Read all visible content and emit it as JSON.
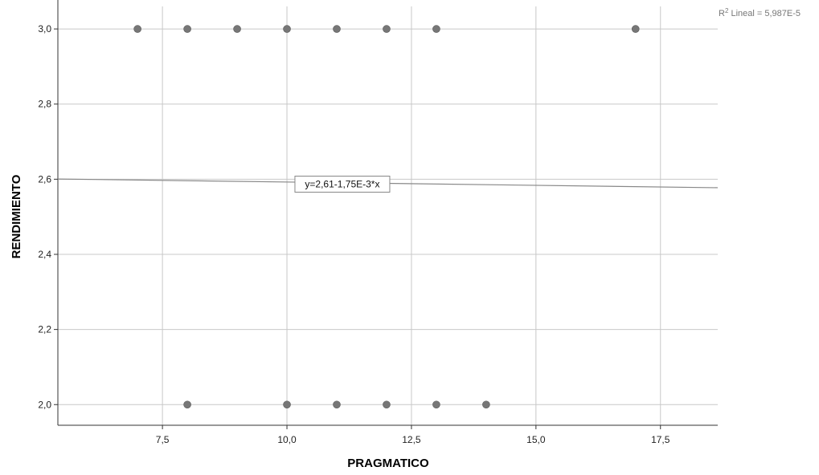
{
  "chart_data": {
    "type": "scatter",
    "xlabel": "PRAGMATICO",
    "ylabel": "RENDIMIENTO",
    "xlim": [
      5.4,
      18.65
    ],
    "ylim": [
      1.945,
      3.06
    ],
    "xticks": [
      7.5,
      10.0,
      12.5,
      15.0,
      17.5
    ],
    "xtick_labels": [
      "7,5",
      "10,0",
      "12,5",
      "15,0",
      "17,5"
    ],
    "yticks": [
      2.0,
      2.2,
      2.4,
      2.6,
      2.8,
      3.0
    ],
    "ytick_labels": [
      "2,0",
      "2,2",
      "2,4",
      "2,6",
      "2,8",
      "3,0"
    ],
    "grid": true,
    "points": [
      {
        "x": 7,
        "y": 3.0
      },
      {
        "x": 8,
        "y": 3.0
      },
      {
        "x": 9,
        "y": 3.0
      },
      {
        "x": 10,
        "y": 3.0
      },
      {
        "x": 11,
        "y": 3.0
      },
      {
        "x": 12,
        "y": 3.0
      },
      {
        "x": 13,
        "y": 3.0
      },
      {
        "x": 17,
        "y": 3.0
      },
      {
        "x": 8,
        "y": 2.0
      },
      {
        "x": 10,
        "y": 2.0
      },
      {
        "x": 11,
        "y": 2.0
      },
      {
        "x": 12,
        "y": 2.0
      },
      {
        "x": 13,
        "y": 2.0
      },
      {
        "x": 14,
        "y": 2.0
      }
    ],
    "fit_line": {
      "intercept": 2.61,
      "slope": -0.00175,
      "label": "y=2,61-1,75E-3*x"
    },
    "r2": {
      "prefix": "R",
      "superscript": "2",
      "text": " Lineal = 5,987E-5"
    },
    "colors": {
      "point": "#777777",
      "grid": "#c8c8c8",
      "axis": "#333333",
      "fit_line": "#888888"
    }
  }
}
